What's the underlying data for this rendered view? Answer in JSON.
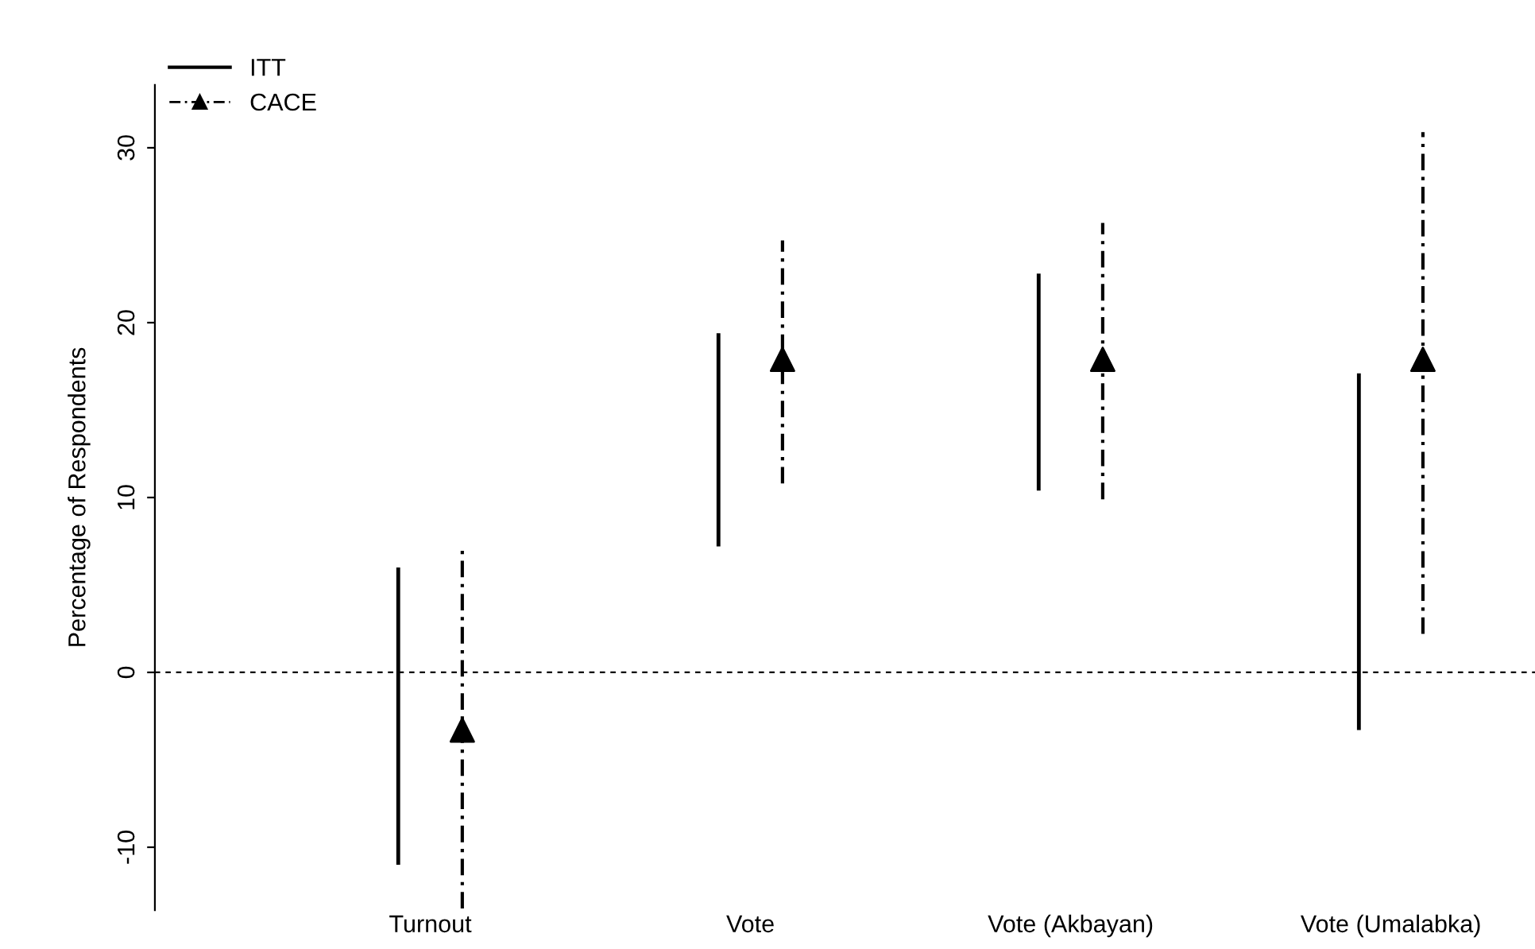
{
  "chart_data": {
    "type": "bar",
    "categories": [
      "Turnout",
      "Vote",
      "Vote (Akbayan)",
      "Vote (Umalabka)"
    ],
    "ylabel": "Percentage of Respondents",
    "ylim": [
      -13.6,
      33.6
    ],
    "yticks": [
      -10,
      0,
      10,
      20,
      30
    ],
    "grid": false,
    "legend": "top left",
    "series": [
      {
        "name": "ITT",
        "color": "#000000",
        "base": [
          -11.0,
          7.2,
          10.4,
          -3.3
        ],
        "values": [
          17.0,
          12.2,
          12.4,
          20.4
        ],
        "line_style": "solid"
      },
      {
        "name": "CACE",
        "type": "scatter",
        "color": "#000000",
        "values": [
          -3.3,
          17.9,
          17.9,
          17.9
        ],
        "errors": [
          [
            -13.5,
            7.2
          ],
          [
            10.8,
            24.7
          ],
          [
            9.9,
            25.7
          ],
          [
            2.2,
            30.9
          ]
        ],
        "marker": "triangle",
        "line_style": "dashed"
      }
    ],
    "ref_lines": [
      {
        "axis": "y",
        "value": 0,
        "color": "#000000",
        "line_style": "dashed"
      }
    ]
  }
}
